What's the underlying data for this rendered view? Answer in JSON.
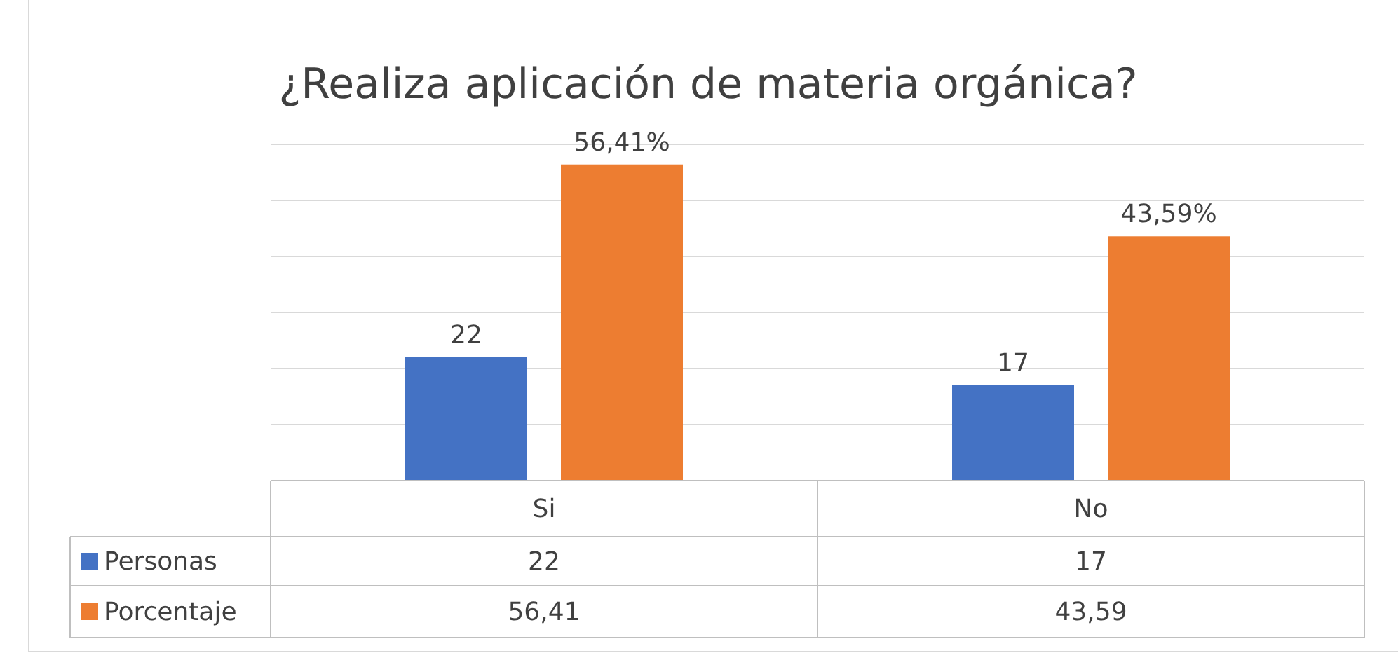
{
  "chart_data": {
    "type": "bar",
    "title": "¿Realiza aplicación de materia orgánica?",
    "categories": [
      "Si",
      "No"
    ],
    "series": [
      {
        "name": "Personas",
        "color": "#4472c4",
        "values": [
          22,
          17
        ],
        "value_labels": [
          "22",
          "17"
        ]
      },
      {
        "name": "Porcentaje",
        "color": "#ed7d31",
        "values": [
          56.41,
          43.59
        ],
        "value_labels": [
          "56,41%",
          "43,59%"
        ]
      }
    ],
    "annotations": [
      "22",
      "17",
      "56,41",
      "43,59"
    ],
    "ylim": [
      0,
      60
    ],
    "yticks": [
      {
        "value": 0,
        "label": null
      },
      {
        "value": 10,
        "label": null
      },
      {
        "value": 20,
        "label": null
      },
      {
        "value": 30,
        "label": null
      },
      {
        "value": 40,
        "label": null
      },
      {
        "value": 50,
        "label": null
      },
      {
        "value": 60,
        "label": null
      }
    ],
    "grid": "y",
    "legend": "bottom",
    "tick_labels": "x"
  }
}
